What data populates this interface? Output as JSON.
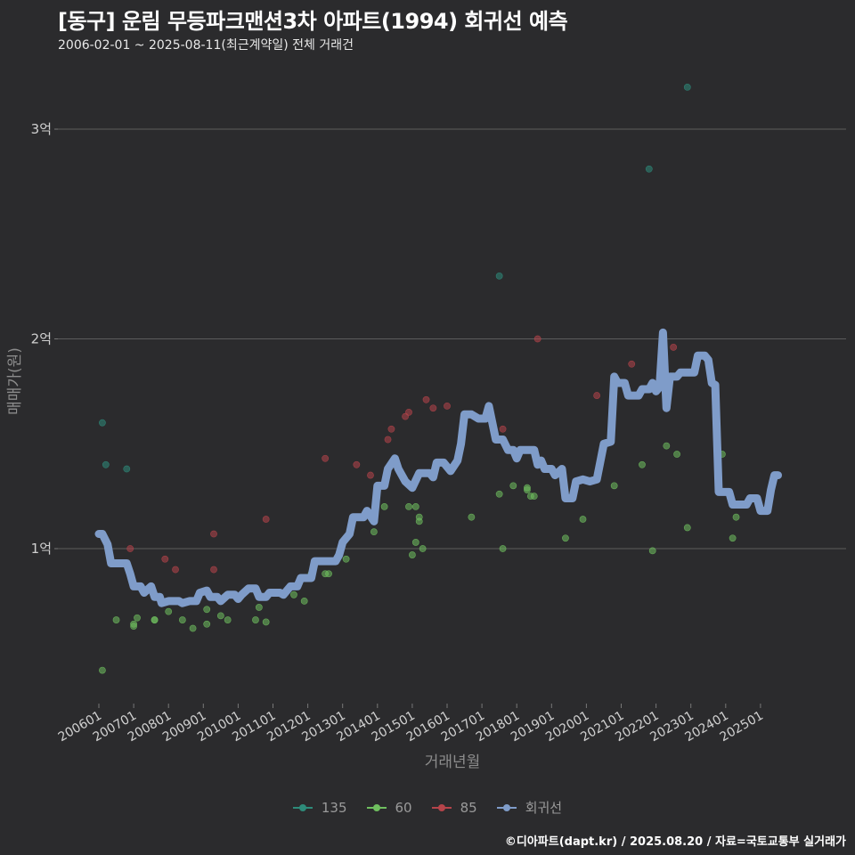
{
  "title": "[동구] 운림 무등파크맨션3차 아파트(1994) 회귀선 예측",
  "subtitle": "2006-02-01 ~ 2025-08-11(최근계약일) 전체 거래건",
  "caption": "©디아파트(dapt.kr) / 2025.08.20 / 자료=국토교통부 실거래가",
  "chart_data": {
    "type": "scatter",
    "xlabel": "거래년월",
    "ylabel": "매매가(원)",
    "x_range": [
      2006.0,
      2025.6
    ],
    "ylim": [
      0.27,
      3.3
    ],
    "y_ticks": [
      {
        "v": 1,
        "label": "1억"
      },
      {
        "v": 2,
        "label": "2억"
      },
      {
        "v": 3,
        "label": "3억"
      }
    ],
    "x_ticks": [
      {
        "v": 2006.0,
        "label": "200601"
      },
      {
        "v": 2007.0,
        "label": "200701"
      },
      {
        "v": 2008.0,
        "label": "200801"
      },
      {
        "v": 2009.0,
        "label": "200901"
      },
      {
        "v": 2010.0,
        "label": "201001"
      },
      {
        "v": 2011.0,
        "label": "201101"
      },
      {
        "v": 2012.0,
        "label": "201201"
      },
      {
        "v": 2013.0,
        "label": "201301"
      },
      {
        "v": 2014.0,
        "label": "201401"
      },
      {
        "v": 2015.0,
        "label": "201501"
      },
      {
        "v": 2016.0,
        "label": "201601"
      },
      {
        "v": 2017.0,
        "label": "201701"
      },
      {
        "v": 2018.0,
        "label": "201801"
      },
      {
        "v": 2019.0,
        "label": "201901"
      },
      {
        "v": 2020.0,
        "label": "202001"
      },
      {
        "v": 2021.0,
        "label": "202101"
      },
      {
        "v": 2022.0,
        "label": "202201"
      },
      {
        "v": 2023.0,
        "label": "202301"
      },
      {
        "v": 2024.0,
        "label": "202401"
      },
      {
        "v": 2025.0,
        "label": "202501"
      }
    ],
    "series": [
      {
        "name": "135",
        "color": "#2e8b7a",
        "kind": "points",
        "points": [
          [
            2006.1,
            1.6
          ],
          [
            2006.2,
            1.4
          ],
          [
            2006.8,
            1.38
          ],
          [
            2017.5,
            2.3
          ],
          [
            2021.8,
            2.81
          ],
          [
            2022.9,
            3.2
          ]
        ]
      },
      {
        "name": "60",
        "color": "#6fbf5f",
        "kind": "points",
        "points": [
          [
            2006.1,
            0.42
          ],
          [
            2006.5,
            0.66
          ],
          [
            2007.0,
            0.64
          ],
          [
            2007.0,
            0.63
          ],
          [
            2007.1,
            0.67
          ],
          [
            2007.6,
            0.66
          ],
          [
            2007.6,
            0.66
          ],
          [
            2008.0,
            0.7
          ],
          [
            2008.4,
            0.66
          ],
          [
            2008.7,
            0.62
          ],
          [
            2009.1,
            0.71
          ],
          [
            2009.1,
            0.64
          ],
          [
            2009.5,
            0.68
          ],
          [
            2009.7,
            0.66
          ],
          [
            2010.5,
            0.66
          ],
          [
            2010.6,
            0.72
          ],
          [
            2010.8,
            0.65
          ],
          [
            2011.6,
            0.78
          ],
          [
            2011.9,
            0.75
          ],
          [
            2012.1,
            0.88
          ],
          [
            2012.5,
            0.88
          ],
          [
            2012.6,
            0.88
          ],
          [
            2013.1,
            0.95
          ],
          [
            2013.9,
            1.08
          ],
          [
            2014.2,
            1.2
          ],
          [
            2014.9,
            1.2
          ],
          [
            2015.0,
            0.97
          ],
          [
            2015.1,
            1.2
          ],
          [
            2015.1,
            1.03
          ],
          [
            2015.2,
            1.15
          ],
          [
            2015.2,
            1.13
          ],
          [
            2015.3,
            1.0
          ],
          [
            2016.7,
            1.15
          ],
          [
            2017.5,
            1.26
          ],
          [
            2017.6,
            1.0
          ],
          [
            2017.9,
            1.3
          ],
          [
            2018.3,
            1.29
          ],
          [
            2018.3,
            1.28
          ],
          [
            2018.4,
            1.25
          ],
          [
            2018.5,
            1.25
          ],
          [
            2019.4,
            1.05
          ],
          [
            2019.9,
            1.14
          ],
          [
            2020.8,
            1.3
          ],
          [
            2021.6,
            1.4
          ],
          [
            2021.9,
            0.99
          ],
          [
            2022.3,
            1.49
          ],
          [
            2022.6,
            1.45
          ],
          [
            2022.9,
            1.1
          ],
          [
            2023.9,
            1.45
          ],
          [
            2024.2,
            1.05
          ],
          [
            2024.3,
            1.15
          ]
        ]
      },
      {
        "name": "85",
        "color": "#b5444a",
        "kind": "points",
        "points": [
          [
            2006.9,
            1.0
          ],
          [
            2007.9,
            0.95
          ],
          [
            2008.2,
            0.9
          ],
          [
            2009.3,
            1.07
          ],
          [
            2009.3,
            0.9
          ],
          [
            2010.8,
            1.14
          ],
          [
            2012.5,
            1.43
          ],
          [
            2013.4,
            1.4
          ],
          [
            2013.8,
            1.35
          ],
          [
            2014.3,
            1.52
          ],
          [
            2014.4,
            1.57
          ],
          [
            2014.8,
            1.63
          ],
          [
            2014.9,
            1.65
          ],
          [
            2015.4,
            1.71
          ],
          [
            2015.6,
            1.67
          ],
          [
            2016.0,
            1.68
          ],
          [
            2017.6,
            1.57
          ],
          [
            2018.6,
            2.0
          ],
          [
            2020.3,
            1.73
          ],
          [
            2021.3,
            1.88
          ],
          [
            2022.5,
            1.96
          ]
        ]
      },
      {
        "name": "회귀선",
        "color": "#7f9cc9",
        "kind": "line",
        "points": [
          [
            2006.0,
            1.07
          ],
          [
            2006.1,
            1.07
          ],
          [
            2006.25,
            1.02
          ],
          [
            2006.35,
            0.93
          ],
          [
            2006.6,
            0.93
          ],
          [
            2006.8,
            0.93
          ],
          [
            2006.9,
            0.88
          ],
          [
            2007.0,
            0.82
          ],
          [
            2007.2,
            0.82
          ],
          [
            2007.3,
            0.79
          ],
          [
            2007.5,
            0.82
          ],
          [
            2007.6,
            0.77
          ],
          [
            2007.75,
            0.77
          ],
          [
            2007.8,
            0.74
          ],
          [
            2008.0,
            0.75
          ],
          [
            2008.3,
            0.75
          ],
          [
            2008.4,
            0.74
          ],
          [
            2008.6,
            0.75
          ],
          [
            2008.8,
            0.75
          ],
          [
            2008.9,
            0.79
          ],
          [
            2009.1,
            0.8
          ],
          [
            2009.2,
            0.77
          ],
          [
            2009.4,
            0.77
          ],
          [
            2009.5,
            0.75
          ],
          [
            2009.7,
            0.78
          ],
          [
            2009.9,
            0.78
          ],
          [
            2010.0,
            0.76
          ],
          [
            2010.1,
            0.78
          ],
          [
            2010.3,
            0.81
          ],
          [
            2010.5,
            0.81
          ],
          [
            2010.6,
            0.77
          ],
          [
            2010.8,
            0.77
          ],
          [
            2010.9,
            0.79
          ],
          [
            2011.2,
            0.79
          ],
          [
            2011.3,
            0.78
          ],
          [
            2011.5,
            0.82
          ],
          [
            2011.7,
            0.82
          ],
          [
            2011.8,
            0.86
          ],
          [
            2012.1,
            0.86
          ],
          [
            2012.2,
            0.94
          ],
          [
            2012.4,
            0.94
          ],
          [
            2012.8,
            0.94
          ],
          [
            2012.9,
            0.97
          ],
          [
            2013.0,
            1.03
          ],
          [
            2013.2,
            1.07
          ],
          [
            2013.3,
            1.15
          ],
          [
            2013.6,
            1.15
          ],
          [
            2013.7,
            1.18
          ],
          [
            2013.9,
            1.13
          ],
          [
            2014.0,
            1.3
          ],
          [
            2014.2,
            1.3
          ],
          [
            2014.3,
            1.38
          ],
          [
            2014.5,
            1.43
          ],
          [
            2014.6,
            1.38
          ],
          [
            2014.8,
            1.32
          ],
          [
            2015.0,
            1.29
          ],
          [
            2015.2,
            1.36
          ],
          [
            2015.5,
            1.36
          ],
          [
            2015.6,
            1.34
          ],
          [
            2015.7,
            1.41
          ],
          [
            2015.9,
            1.41
          ],
          [
            2016.1,
            1.37
          ],
          [
            2016.3,
            1.42
          ],
          [
            2016.4,
            1.5
          ],
          [
            2016.5,
            1.64
          ],
          [
            2016.7,
            1.64
          ],
          [
            2016.9,
            1.62
          ],
          [
            2017.1,
            1.62
          ],
          [
            2017.2,
            1.68
          ],
          [
            2017.4,
            1.52
          ],
          [
            2017.6,
            1.52
          ],
          [
            2017.75,
            1.47
          ],
          [
            2017.9,
            1.47
          ],
          [
            2018.0,
            1.43
          ],
          [
            2018.1,
            1.47
          ],
          [
            2018.3,
            1.47
          ],
          [
            2018.5,
            1.47
          ],
          [
            2018.6,
            1.4
          ],
          [
            2018.7,
            1.42
          ],
          [
            2018.8,
            1.38
          ],
          [
            2019.0,
            1.38
          ],
          [
            2019.1,
            1.35
          ],
          [
            2019.3,
            1.38
          ],
          [
            2019.4,
            1.24
          ],
          [
            2019.6,
            1.24
          ],
          [
            2019.7,
            1.32
          ],
          [
            2019.9,
            1.33
          ],
          [
            2020.1,
            1.32
          ],
          [
            2020.3,
            1.33
          ],
          [
            2020.5,
            1.5
          ],
          [
            2020.7,
            1.51
          ],
          [
            2020.8,
            1.82
          ],
          [
            2020.9,
            1.79
          ],
          [
            2021.1,
            1.79
          ],
          [
            2021.2,
            1.73
          ],
          [
            2021.5,
            1.73
          ],
          [
            2021.6,
            1.76
          ],
          [
            2021.8,
            1.76
          ],
          [
            2021.9,
            1.79
          ],
          [
            2022.0,
            1.75
          ],
          [
            2022.1,
            1.77
          ],
          [
            2022.2,
            2.03
          ],
          [
            2022.3,
            1.67
          ],
          [
            2022.4,
            1.82
          ],
          [
            2022.6,
            1.82
          ],
          [
            2022.7,
            1.84
          ],
          [
            2022.9,
            1.84
          ],
          [
            2023.1,
            1.84
          ],
          [
            2023.2,
            1.92
          ],
          [
            2023.4,
            1.92
          ],
          [
            2023.5,
            1.9
          ],
          [
            2023.6,
            1.79
          ],
          [
            2023.7,
            1.78
          ],
          [
            2023.8,
            1.27
          ],
          [
            2024.1,
            1.27
          ],
          [
            2024.2,
            1.21
          ],
          [
            2024.4,
            1.21
          ],
          [
            2024.6,
            1.21
          ],
          [
            2024.7,
            1.24
          ],
          [
            2024.9,
            1.24
          ],
          [
            2025.0,
            1.18
          ],
          [
            2025.2,
            1.18
          ],
          [
            2025.3,
            1.28
          ],
          [
            2025.4,
            1.35
          ],
          [
            2025.5,
            1.35
          ]
        ]
      }
    ]
  }
}
